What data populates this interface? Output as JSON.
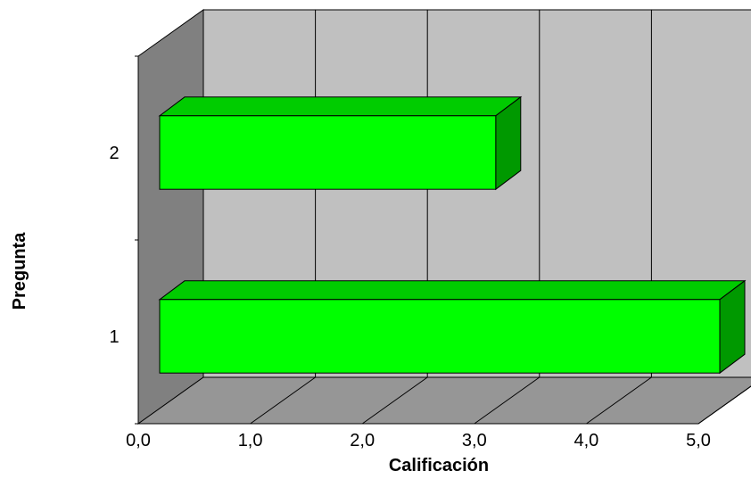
{
  "chart_data": {
    "type": "bar",
    "orientation": "horizontal",
    "style": "3d",
    "categories": [
      "1",
      "2"
    ],
    "values": [
      5.0,
      3.0
    ],
    "xlabel": "Calificación",
    "ylabel": "Pregunta",
    "xlim": [
      0,
      5
    ],
    "xticks": [
      "0,0",
      "1,0",
      "2,0",
      "3,0",
      "4,0",
      "5,0"
    ],
    "grid": true,
    "legend": "none",
    "colors": {
      "bar_front": "#00ff00",
      "bar_top": "#00cc00",
      "bar_side": "#009900",
      "back_wall": "#c0c0c0",
      "side_wall": "#808080",
      "floor": "#969696"
    }
  }
}
